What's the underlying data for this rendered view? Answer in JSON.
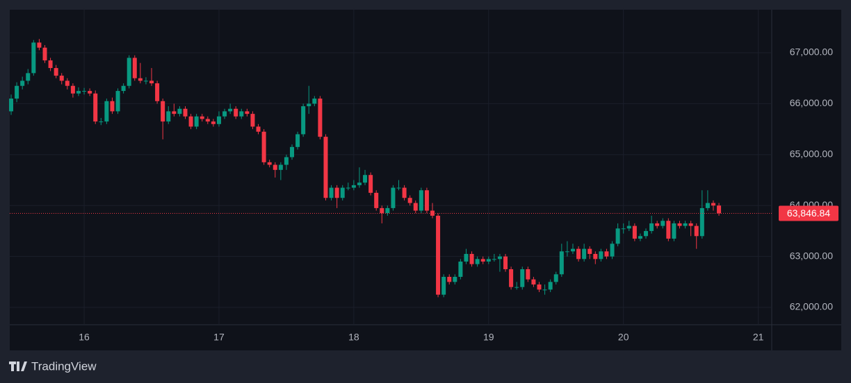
{
  "chart_data": {
    "type": "candlestick",
    "x": [
      11,
      12,
      13,
      14,
      15,
      16,
      17,
      18,
      19,
      20,
      21,
      22,
      23,
      24,
      25,
      26,
      27,
      28,
      29,
      30,
      31,
      32,
      33,
      34,
      35,
      36,
      37,
      38,
      39,
      40,
      41,
      42,
      43,
      44,
      45,
      46,
      47,
      48,
      49,
      50,
      51,
      52,
      53,
      54,
      55,
      56,
      57,
      58,
      59,
      60,
      61,
      62,
      63,
      64,
      65,
      66,
      67,
      68,
      69,
      70,
      71,
      72,
      73,
      74,
      75,
      76,
      77,
      78,
      79,
      80,
      81,
      82,
      83,
      84,
      85,
      86,
      87,
      88,
      89,
      90,
      91,
      92,
      93,
      94,
      95,
      96,
      97,
      98,
      99,
      100,
      101,
      102,
      103,
      104,
      105,
      106,
      107,
      108,
      109,
      110,
      111,
      112,
      113,
      114,
      115,
      116,
      117,
      118,
      119,
      120,
      121,
      122,
      123,
      124,
      125,
      126,
      127,
      128,
      129,
      130,
      131,
      132,
      133,
      134,
      135,
      136,
      137
    ],
    "open": [
      65850,
      66100,
      66350,
      66450,
      66600,
      67200,
      67100,
      66850,
      66700,
      66550,
      66450,
      66350,
      66200,
      66250,
      66250,
      66200,
      65650,
      65650,
      66050,
      65850,
      66250,
      66350,
      66900,
      66500,
      66450,
      66450,
      66400,
      66050,
      65650,
      65850,
      65800,
      65900,
      65750,
      65550,
      65750,
      65700,
      65650,
      65600,
      65750,
      65850,
      65900,
      65750,
      65850,
      65800,
      65550,
      65450,
      64850,
      64800,
      64700,
      64800,
      64950,
      65150,
      65400,
      65950,
      66000,
      66100,
      65350,
      64150,
      64350,
      64150,
      64350,
      64350,
      64400,
      64450,
      64600,
      64250,
      63950,
      63850,
      63950,
      64350,
      64350,
      64150,
      64050,
      63900,
      64300,
      63900,
      63800,
      62250,
      62600,
      62500,
      62600,
      62900,
      63050,
      62850,
      62950,
      62900,
      62950,
      62950,
      63000,
      62750,
      62400,
      62400,
      62750,
      62550,
      62450,
      62350,
      62350,
      62500,
      62650,
      63100,
      63100,
      63150,
      62950,
      63150,
      63050,
      62950,
      63100,
      63000,
      63250,
      63550,
      63550,
      63600,
      63350,
      63400,
      63500,
      63650,
      63600,
      63700,
      63350,
      63650,
      63600,
      63650,
      63600,
      63400,
      63950,
      64050,
      64000
    ],
    "high": [
      66180,
      66420,
      66530,
      66680,
      67250,
      67270,
      67150,
      66900,
      66760,
      66600,
      66500,
      66400,
      66320,
      66310,
      66300,
      66260,
      65720,
      66100,
      66120,
      66300,
      66400,
      66950,
      66950,
      66800,
      66520,
      66700,
      66450,
      66100,
      65950,
      66000,
      65950,
      65950,
      65800,
      65800,
      65800,
      65750,
      65700,
      65850,
      65900,
      66000,
      65950,
      65900,
      65900,
      65850,
      65600,
      65500,
      64900,
      64850,
      64850,
      65000,
      65200,
      65450,
      66000,
      66350,
      66150,
      66150,
      65400,
      64400,
      64400,
      64400,
      64450,
      64500,
      64750,
      64700,
      64650,
      64300,
      64000,
      64000,
      64400,
      64500,
      64400,
      64200,
      64100,
      64350,
      64350,
      64050,
      63850,
      62650,
      62650,
      62650,
      62950,
      63150,
      63100,
      63000,
      63000,
      63000,
      63050,
      63050,
      63050,
      62800,
      62500,
      62800,
      62800,
      62600,
      62500,
      62450,
      62550,
      62700,
      63250,
      63300,
      63250,
      63200,
      63250,
      63200,
      63100,
      63150,
      63150,
      63300,
      63650,
      63650,
      63700,
      63650,
      63450,
      63550,
      63800,
      63700,
      63750,
      63750,
      63700,
      63700,
      63700,
      63700,
      63650,
      64300,
      64300,
      64100,
      64050
    ],
    "low": [
      65780,
      66030,
      66280,
      66380,
      66550,
      67050,
      66800,
      66640,
      66500,
      66380,
      66280,
      66120,
      66150,
      66180,
      66150,
      65600,
      65580,
      65600,
      65800,
      65800,
      66200,
      66300,
      66450,
      66400,
      66380,
      66350,
      66000,
      65300,
      65600,
      65750,
      65750,
      65700,
      65500,
      65500,
      65650,
      65600,
      65550,
      65550,
      65700,
      65800,
      65700,
      65700,
      65750,
      65500,
      65400,
      64800,
      64750,
      64550,
      64500,
      64700,
      64900,
      65100,
      65350,
      65800,
      65950,
      65300,
      64100,
      64100,
      63950,
      64100,
      64300,
      64300,
      64350,
      64400,
      64200,
      63900,
      63650,
      63800,
      63900,
      64300,
      64100,
      64000,
      63850,
      63850,
      63850,
      63750,
      62200,
      62200,
      62450,
      62450,
      62550,
      62850,
      62800,
      62800,
      62850,
      62850,
      62900,
      62700,
      62700,
      62350,
      62350,
      62350,
      62500,
      62400,
      62300,
      62250,
      62300,
      62450,
      62600,
      63000,
      63050,
      62900,
      62900,
      62950,
      62850,
      62900,
      62950,
      62950,
      63200,
      63450,
      63500,
      63300,
      63300,
      63350,
      63450,
      63550,
      63550,
      63300,
      63300,
      63550,
      63550,
      63400,
      63150,
      63350,
      63900,
      63900,
      63800
    ],
    "close": [
      66100,
      66350,
      66450,
      66600,
      67200,
      67100,
      66850,
      66700,
      66550,
      66450,
      66350,
      66200,
      66250,
      66250,
      66200,
      65650,
      65650,
      66050,
      65850,
      66250,
      66350,
      66900,
      66500,
      66450,
      66450,
      66400,
      66050,
      65650,
      65850,
      65800,
      65900,
      65750,
      65550,
      65750,
      65700,
      65650,
      65600,
      65750,
      65850,
      65900,
      65750,
      65850,
      65800,
      65550,
      65450,
      64850,
      64800,
      64700,
      64800,
      64950,
      65150,
      65400,
      65950,
      66000,
      66100,
      65350,
      64150,
      64350,
      64150,
      64350,
      64350,
      64400,
      64450,
      64600,
      64250,
      63950,
      63850,
      63950,
      64350,
      64350,
      64150,
      64050,
      63900,
      64300,
      63900,
      63800,
      62250,
      62600,
      62500,
      62600,
      62900,
      63050,
      62850,
      62950,
      62900,
      62950,
      62950,
      63000,
      62750,
      62400,
      62400,
      62750,
      62550,
      62450,
      62350,
      62350,
      62500,
      62650,
      63100,
      63100,
      63150,
      62950,
      63150,
      63050,
      62950,
      63100,
      63000,
      63250,
      63550,
      63550,
      63600,
      63350,
      63400,
      63500,
      63650,
      63600,
      63700,
      63350,
      63650,
      63600,
      63650,
      63600,
      63400,
      63950,
      64050,
      64000,
      63846.84
    ],
    "up_color": "#089981",
    "down_color": "#f23645",
    "xlim": [
      10.75,
      146.4
    ],
    "ylim": [
      61660,
      67845
    ],
    "xticks": [
      {
        "value": 24,
        "label": "16"
      },
      {
        "value": 48,
        "label": "17"
      },
      {
        "value": 72,
        "label": "18"
      },
      {
        "value": 96,
        "label": "19"
      },
      {
        "value": 120,
        "label": "20"
      },
      {
        "value": 144,
        "label": "21"
      }
    ],
    "yticks": [
      {
        "value": 62000,
        "label": "62,000.00"
      },
      {
        "value": 63000,
        "label": "63,000.00"
      },
      {
        "value": 64000,
        "label": "64,000.00"
      },
      {
        "value": 65000,
        "label": "65,000.00"
      },
      {
        "value": 66000,
        "label": "66,000.00"
      },
      {
        "value": 67000,
        "label": "67,000.00"
      }
    ],
    "grid": true,
    "last_price": {
      "value": 63846.84,
      "label": "63,846.84"
    }
  },
  "footer": {
    "logo_text": "TradingView"
  }
}
